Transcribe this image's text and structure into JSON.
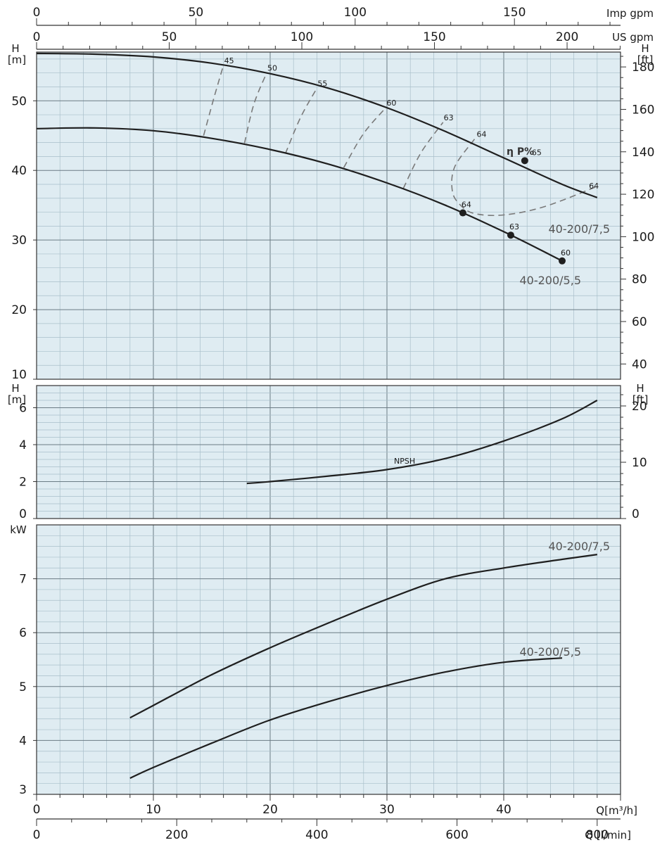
{
  "top_scales": {
    "imp_gpm": {
      "unit": "Imp gpm",
      "ticks": [
        0,
        50,
        100,
        150
      ]
    },
    "us_gpm": {
      "unit": "US gpm",
      "ticks": [
        0,
        50,
        100,
        150,
        200
      ]
    }
  },
  "bottom_scales": {
    "m3h": {
      "unit": "Q[m³/h]",
      "ticks": [
        0,
        10,
        20,
        30,
        40
      ]
    },
    "lmin": {
      "unit": "Q [l/min]",
      "ticks": [
        0,
        200,
        400,
        600,
        800
      ]
    }
  },
  "eta_label": "η P%",
  "npsh_label": "NPSH",
  "colors": {
    "panel_bg": "#dfecf2",
    "grid_minor": "#a9bfca",
    "grid_major": "#6b7b84",
    "curve": "#1f1f1f",
    "eff": "#7a7a7a"
  },
  "chart_data": [
    {
      "type": "line",
      "title": "",
      "xlabel": "Q[m³/h]",
      "ylabel": "H [m]",
      "ylabel_right": "H [ft]",
      "xlim": [
        0,
        50
      ],
      "ylim": [
        10,
        57
      ],
      "y_ticks": [
        10,
        20,
        30,
        40,
        50
      ],
      "y_ticks_right": [
        40,
        60,
        80,
        100,
        120,
        140,
        160,
        180
      ],
      "series": [
        {
          "name": "40-200/7,5",
          "x": [
            0,
            5,
            10,
            15,
            20,
            25,
            30,
            35,
            40,
            45,
            48
          ],
          "y": [
            56.8,
            56.7,
            56.3,
            55.4,
            53.9,
            51.8,
            49.0,
            45.6,
            41.8,
            38.0,
            36.1
          ]
        },
        {
          "name": "40-200/5,5",
          "x": [
            0,
            5,
            10,
            15,
            20,
            25,
            30,
            35,
            40,
            45
          ],
          "y": [
            46.0,
            46.1,
            45.7,
            44.6,
            43.0,
            40.9,
            38.2,
            35.0,
            31.2,
            27.0
          ]
        }
      ],
      "markers": [
        {
          "x": 41.8,
          "y": 41.4,
          "label": "65"
        },
        {
          "x": 36.5,
          "y": 33.9,
          "label": "64"
        },
        {
          "x": 40.6,
          "y": 30.7,
          "label": "63"
        },
        {
          "x": 45.0,
          "y": 27.0,
          "label": "60"
        }
      ],
      "efficiency_lines": [
        {
          "label": "45",
          "x": [
            14.3,
            15.2,
            16.0
          ],
          "y": [
            45.0,
            50.5,
            55.1
          ]
        },
        {
          "label": "50",
          "x": [
            17.8,
            18.6,
            19.7
          ],
          "y": [
            43.9,
            49.5,
            54.0
          ]
        },
        {
          "label": "55",
          "x": [
            21.3,
            22.6,
            24.0
          ],
          "y": [
            42.4,
            47.6,
            51.8
          ]
        },
        {
          "label": "60",
          "x": [
            26.3,
            28.0,
            29.9
          ],
          "y": [
            40.4,
            45.3,
            49.0
          ]
        },
        {
          "label": "63",
          "x": [
            31.4,
            32.9,
            34.8
          ],
          "y": [
            37.4,
            42.5,
            46.9
          ]
        },
        {
          "label": "64",
          "x": [
            37.5,
            35.8,
            35.6,
            36.3,
            37.5,
            40.0,
            43.5,
            48.0
          ],
          "y": [
            44.5,
            40.5,
            37.0,
            35.0,
            33.8,
            33.6,
            34.8,
            37.7
          ]
        }
      ],
      "efficiency_end_label": {
        "x": 47.3,
        "y": 37.6,
        "label": "64"
      }
    },
    {
      "type": "line",
      "title": "",
      "xlabel": "Q[m³/h]",
      "ylabel": "H [m]",
      "ylabel_right": "H [ft]",
      "xlim": [
        0,
        50
      ],
      "ylim": [
        0,
        7.2
      ],
      "y_ticks": [
        0,
        2,
        4,
        6
      ],
      "y_ticks_right": [
        0,
        10,
        20
      ],
      "series": [
        {
          "name": "NPSH",
          "x": [
            18,
            20,
            25,
            30,
            35,
            40,
            45,
            48
          ],
          "y": [
            1.9,
            2.0,
            2.3,
            2.65,
            3.25,
            4.2,
            5.4,
            6.4
          ]
        }
      ]
    },
    {
      "type": "line",
      "title": "",
      "xlabel": "Q[m³/h]",
      "ylabel": "kW",
      "xlim": [
        0,
        50
      ],
      "ylim": [
        3,
        8
      ],
      "y_ticks": [
        3,
        4,
        5,
        6,
        7
      ],
      "series": [
        {
          "name": "40-200/7,5",
          "x": [
            8,
            10,
            15,
            20,
            25,
            30,
            35,
            40,
            45,
            48
          ],
          "y": [
            4.42,
            4.65,
            5.22,
            5.72,
            6.18,
            6.62,
            7.0,
            7.2,
            7.36,
            7.45
          ]
        },
        {
          "name": "40-200/5,5",
          "x": [
            8,
            10,
            15,
            20,
            25,
            30,
            35,
            40,
            45
          ],
          "y": [
            3.3,
            3.5,
            3.95,
            4.38,
            4.72,
            5.02,
            5.27,
            5.45,
            5.53
          ]
        }
      ]
    }
  ]
}
